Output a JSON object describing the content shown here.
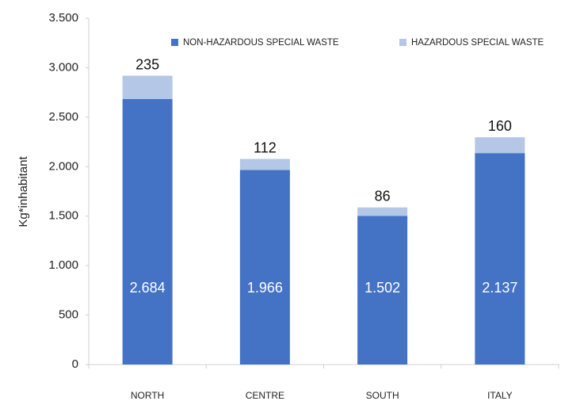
{
  "chart_data": {
    "type": "stacked_bar",
    "y_label": "Kg*inhabitant",
    "categories": [
      "NORTH",
      "CENTRE",
      "SOUTH",
      "ITALY"
    ],
    "series": [
      {
        "name": "NON-HAZARDOUS SPECIAL WASTE",
        "color": "#4472c4",
        "values": [
          2684,
          1966,
          1502,
          2137
        ],
        "value_labels": [
          "2.684",
          "1.966",
          "1.502",
          "2.137"
        ]
      },
      {
        "name": "HAZARDOUS SPECIAL WASTE",
        "color": "#b4c7e7",
        "values": [
          235,
          112,
          86,
          160
        ]
      }
    ],
    "ylim": [
      0,
      3500
    ],
    "yticks": [
      0,
      500,
      {
        "value": 1000,
        "label": "1.000"
      },
      {
        "value": 1500,
        "label": "1.500"
      },
      {
        "value": 2000,
        "label": "2.000"
      },
      {
        "value": 2500,
        "label": "2.500"
      },
      {
        "value": 3000,
        "label": "3.000"
      },
      {
        "value": 3500,
        "label": "3.500"
      }
    ],
    "grid": false,
    "legend": "top-right"
  }
}
